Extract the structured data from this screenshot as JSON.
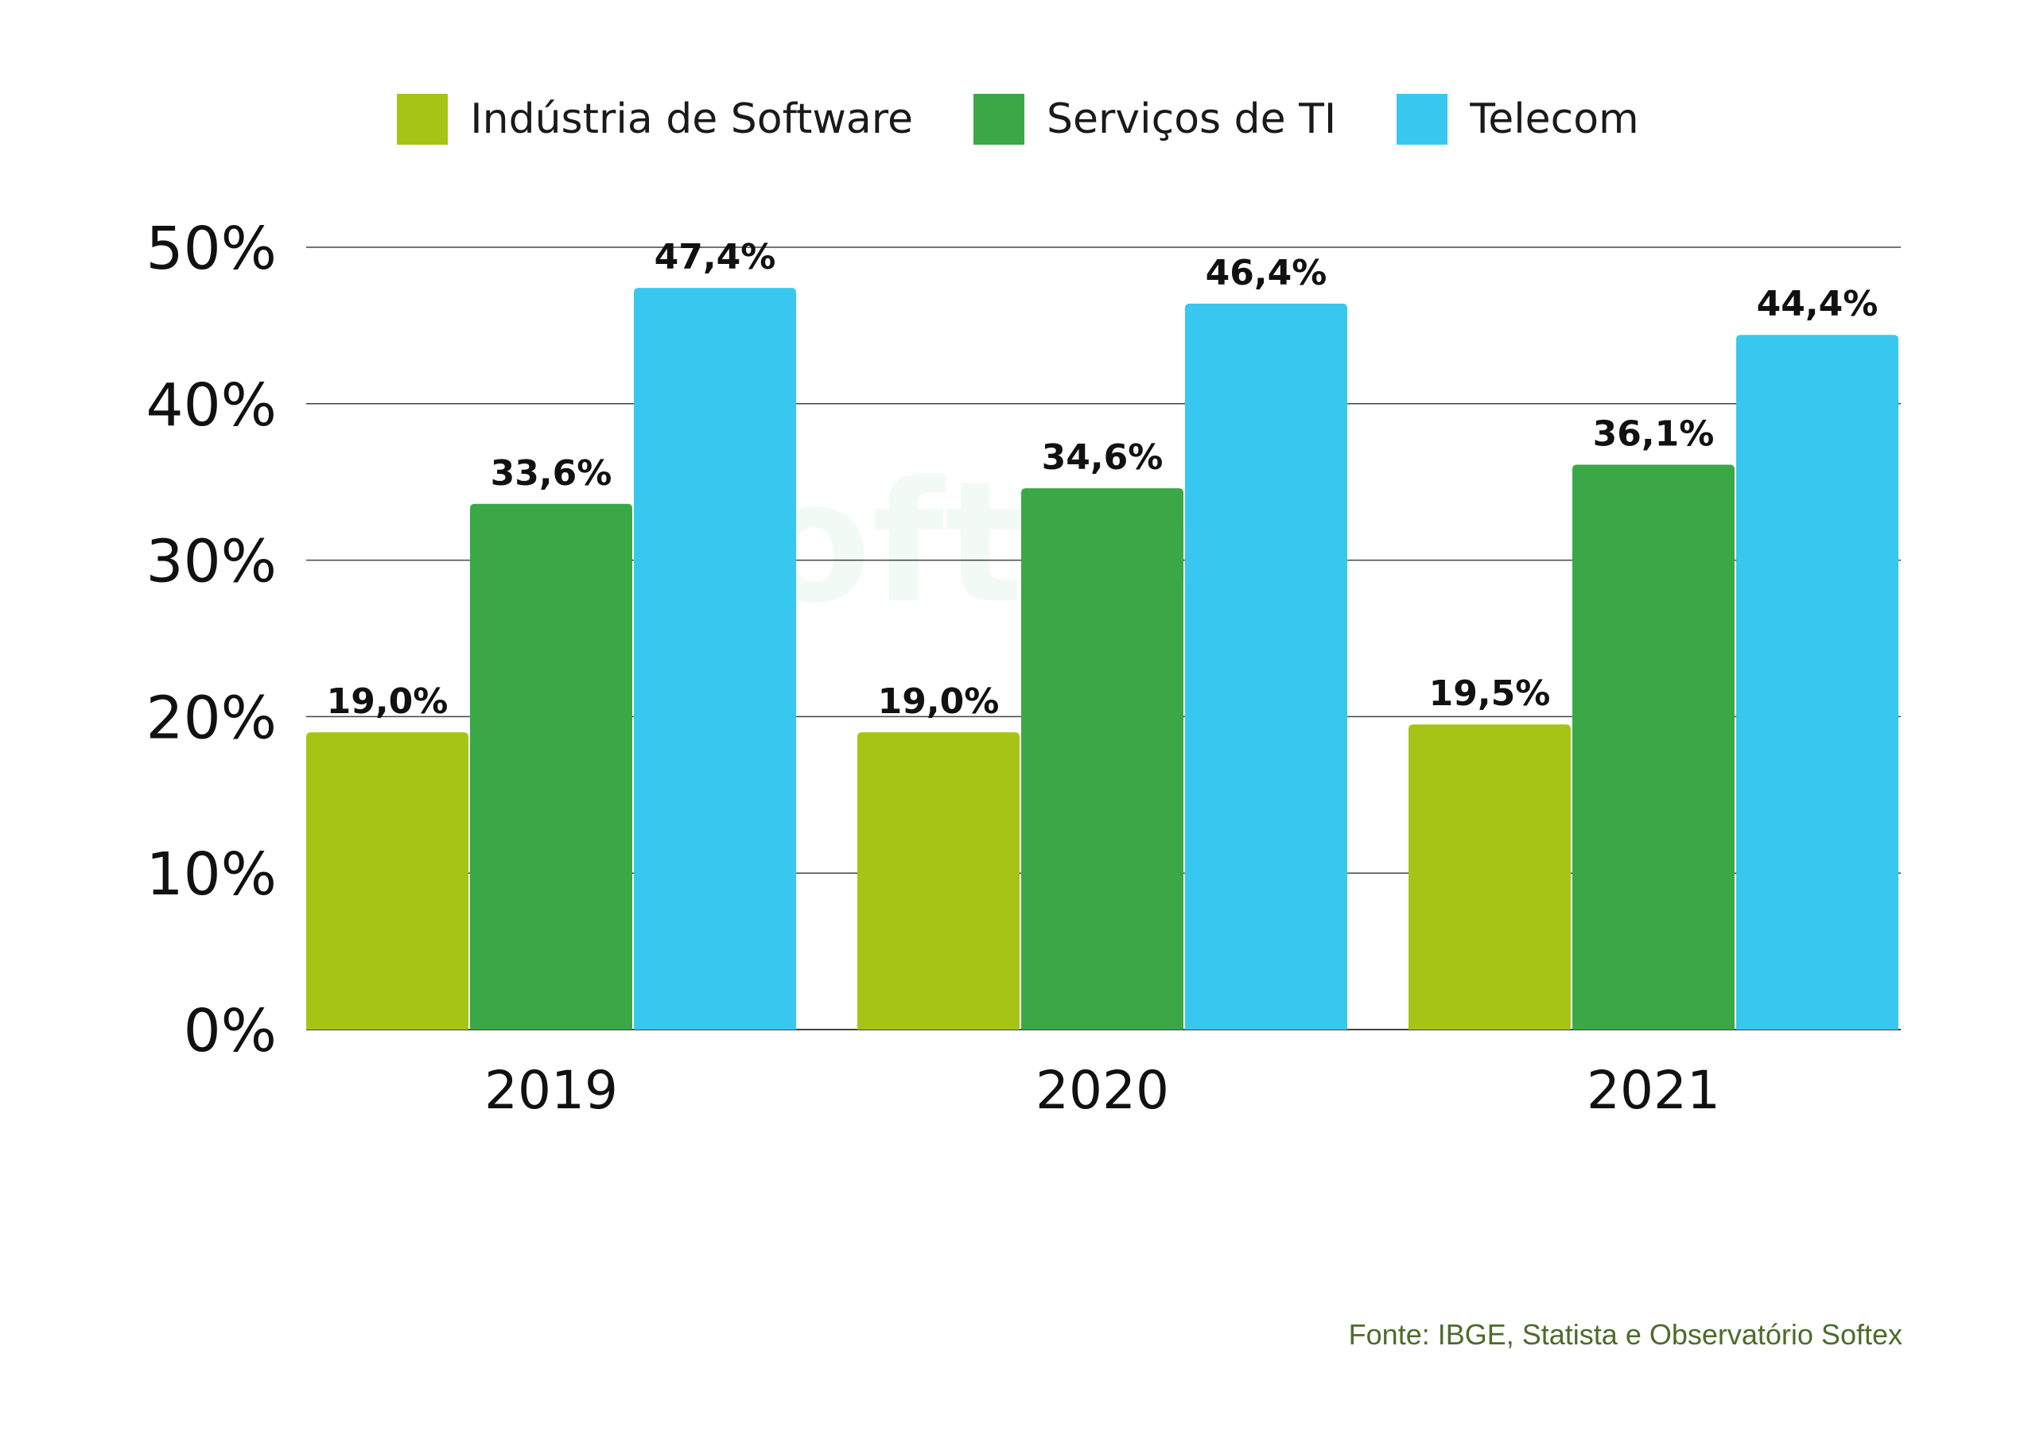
{
  "colors": {
    "industria": "#a6c415",
    "servicos": "#3ba848",
    "telecom": "#38c8ef",
    "gridline": "#444444",
    "text": "#111111",
    "source_note": "#4d6b2a"
  },
  "legend": [
    {
      "label": "Indústria de Software",
      "color_key": "industria"
    },
    {
      "label": "Serviços de TI",
      "color_key": "servicos"
    },
    {
      "label": "Telecom",
      "color_key": "telecom"
    }
  ],
  "watermark_text": "Softex",
  "source_note": "Fonte: IBGE, Statista e Observatório Softex",
  "chart_data": {
    "type": "bar",
    "categories": [
      "2019",
      "2020",
      "2021"
    ],
    "series": [
      {
        "name": "Indústria de Software",
        "values": [
          19.0,
          19.0,
          19.5
        ],
        "labels": [
          "19,0%",
          "19,0%",
          "19,5%"
        ],
        "color_key": "industria"
      },
      {
        "name": "Serviços de TI",
        "values": [
          33.6,
          34.6,
          36.1
        ],
        "labels": [
          "33,6%",
          "34,6%",
          "36,1%"
        ],
        "color_key": "servicos"
      },
      {
        "name": "Telecom",
        "values": [
          47.4,
          46.4,
          44.4
        ],
        "labels": [
          "47,4%",
          "46,4%",
          "44,4%"
        ],
        "color_key": "telecom"
      }
    ],
    "ylim": [
      0,
      50
    ],
    "yticks": [
      0,
      10,
      20,
      30,
      40,
      50
    ],
    "ytick_labels": [
      "0%",
      "10%",
      "20%",
      "30%",
      "40%",
      "50%"
    ],
    "grid": true,
    "legend_position": "top-center"
  }
}
